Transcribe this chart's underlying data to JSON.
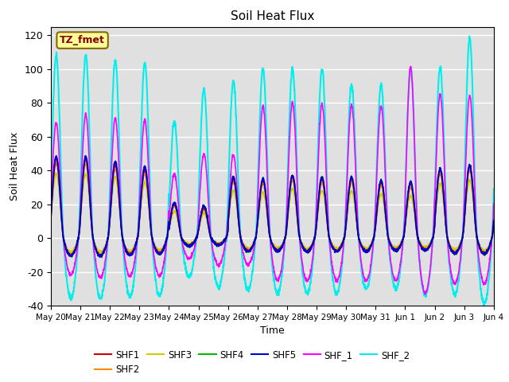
{
  "title": "Soil Heat Flux",
  "ylabel": "Soil Heat Flux",
  "xlabel": "Time",
  "ylim": [
    -40,
    125
  ],
  "yticks": [
    -40,
    -20,
    0,
    20,
    40,
    60,
    80,
    100,
    120
  ],
  "series_colors": {
    "SHF1": "#cc0000",
    "SHF2": "#ff8800",
    "SHF3": "#cccc00",
    "SHF4": "#00bb00",
    "SHF5": "#0000cc",
    "SHF_1": "#ff00ff",
    "SHF_2": "#00eeee"
  },
  "xtick_labels": [
    "May 20",
    "May 21",
    "May 22",
    "May 23",
    "May 24",
    "May 25",
    "May 26",
    "May 27",
    "May 28",
    "May 29",
    "May 30",
    "May 31",
    "Jun 1",
    "Jun 2",
    "Jun 3",
    "Jun 4"
  ],
  "annotation_text": "TZ_fmet",
  "background_color": "#e0e0e0",
  "n_days": 15,
  "points_per_day": 144,
  "day_amps_shf1": [
    47,
    47,
    43,
    40,
    20,
    18,
    35,
    34,
    36,
    35,
    35,
    33,
    32,
    40,
    42
  ],
  "day_amps_shf2": [
    44,
    44,
    41,
    38,
    19,
    17,
    33,
    32,
    34,
    33,
    33,
    31,
    30,
    38,
    40
  ],
  "day_amps_shf3": [
    38,
    38,
    36,
    33,
    16,
    15,
    28,
    27,
    29,
    28,
    28,
    26,
    25,
    32,
    34
  ],
  "day_amps_shf4": [
    48,
    48,
    45,
    42,
    21,
    19,
    36,
    35,
    37,
    36,
    36,
    34,
    33,
    41,
    43
  ],
  "day_amps_shf5": [
    48,
    48,
    45,
    42,
    21,
    19,
    36,
    35,
    37,
    36,
    36,
    34,
    33,
    41,
    43
  ],
  "day_amps_shf_1": [
    68,
    73,
    71,
    70,
    38,
    50,
    49,
    78,
    80,
    79,
    79,
    78,
    101,
    85,
    84
  ],
  "day_amps_shf_2": [
    108,
    108,
    105,
    104,
    69,
    88,
    93,
    100,
    100,
    100,
    91,
    91,
    101,
    101,
    118
  ],
  "neg_scale_main": 0.22,
  "neg_scale_shf_1": 0.32,
  "neg_scale_shf_2": 0.33
}
